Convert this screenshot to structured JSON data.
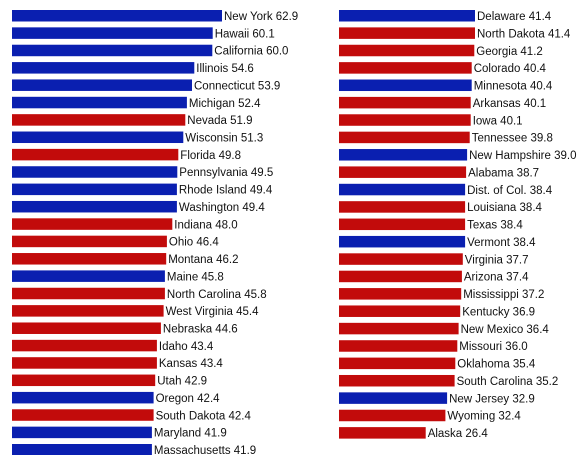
{
  "chart_data": [
    {
      "type": "bar",
      "orientation": "horizontal",
      "categories": [
        "New York",
        "Hawaii",
        "California",
        "Illinois",
        "Connecticut",
        "Michigan",
        "Nevada",
        "Wisconsin",
        "Florida",
        "Pennsylvania",
        "Rhode Island",
        "Washington",
        "Indiana",
        "Ohio",
        "Montana",
        "Maine",
        "North Carolina",
        "West Virginia",
        "Nebraska",
        "Idaho",
        "Kansas",
        "Utah",
        "Oregon",
        "South Dakota",
        "Maryland",
        "Massachusetts"
      ],
      "values": [
        62.9,
        60.1,
        60.0,
        54.6,
        53.9,
        52.4,
        51.9,
        51.3,
        49.8,
        49.5,
        49.4,
        49.4,
        48.0,
        46.4,
        46.2,
        45.8,
        45.8,
        45.4,
        44.6,
        43.4,
        43.4,
        42.9,
        42.4,
        42.4,
        41.9,
        41.9
      ],
      "value_labels": [
        "62.9",
        "60.1",
        "60.0",
        "54.6",
        "53.9",
        "52.4",
        "51.9",
        "51.3",
        "49.8",
        "49.5",
        "49.4",
        "49.4",
        "48.0",
        "46.4",
        "46.2",
        "45.8",
        "45.8",
        "45.4",
        "44.6",
        "43.4",
        "43.4",
        "42.9",
        "42.4",
        "42.4",
        "41.9",
        "41.9"
      ],
      "colors": [
        "blue",
        "blue",
        "blue",
        "blue",
        "blue",
        "blue",
        "red",
        "blue",
        "red",
        "blue",
        "blue",
        "blue",
        "red",
        "red",
        "red",
        "blue",
        "red",
        "red",
        "red",
        "red",
        "red",
        "red",
        "blue",
        "red",
        "blue",
        "blue"
      ],
      "title": "",
      "xlabel": "",
      "ylabel": "",
      "xlim": [
        0,
        65
      ],
      "grid": false,
      "legend": "none"
    },
    {
      "type": "bar",
      "orientation": "horizontal",
      "categories": [
        "Delaware",
        "North Dakota",
        "Georgia",
        "Colorado",
        "Minnesota",
        "Arkansas",
        "Iowa",
        "Tennessee",
        "New Hampshire",
        "Alabama",
        "Dist. of Col.",
        "Louisiana",
        "Texas",
        "Vermont",
        "Virginia",
        "Arizona",
        "Mississippi",
        "Kentucky",
        "New Mexico",
        "Missouri",
        "Oklahoma",
        "South Carolina",
        "New Jersey",
        "Wyoming",
        "Alaska"
      ],
      "values": [
        41.4,
        41.4,
        41.2,
        40.4,
        40.4,
        40.1,
        40.1,
        39.8,
        39.0,
        38.7,
        38.4,
        38.4,
        38.4,
        38.4,
        37.7,
        37.4,
        37.2,
        36.9,
        36.4,
        36.0,
        35.4,
        35.2,
        32.9,
        32.4,
        26.4
      ],
      "value_labels": [
        "41.4",
        "41.4",
        "41.2",
        "40.4",
        "40.4",
        "40.1",
        "40.1",
        "39.8",
        "39.0",
        "38.7",
        "38.4",
        "38.4",
        "38.4",
        "38.4",
        "37.7",
        "37.4",
        "37.2",
        "36.9",
        "36.4",
        "36.0",
        "35.4",
        "35.2",
        "32.9",
        "32.4",
        "26.4"
      ],
      "colors": [
        "blue",
        "red",
        "red",
        "red",
        "blue",
        "red",
        "red",
        "red",
        "blue",
        "red",
        "blue",
        "red",
        "red",
        "blue",
        "red",
        "red",
        "red",
        "red",
        "red",
        "red",
        "red",
        "red",
        "blue",
        "red",
        "red"
      ],
      "title": "",
      "xlabel": "",
      "ylabel": "",
      "xlim": [
        0,
        42
      ],
      "grid": false,
      "legend": "none"
    }
  ],
  "palette": {
    "blue": "#0a1fb0",
    "red": "#c20b0b"
  }
}
